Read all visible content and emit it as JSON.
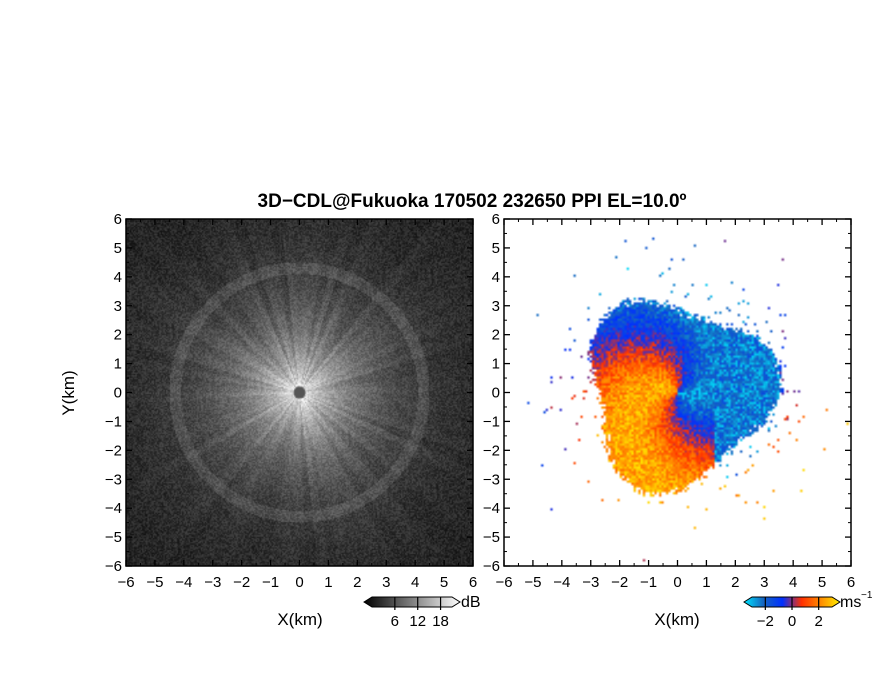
{
  "title": "3D−CDL@Fukuoka 170502 232650 PPI EL=10.0º",
  "chart_data": [
    {
      "type": "heatmap",
      "panel": "left",
      "xlabel": "X(km)",
      "ylabel": "Y(km)",
      "xlim": [
        -6,
        6
      ],
      "ylim": [
        -6,
        6
      ],
      "xticks": [
        "−6",
        "−5",
        "−4",
        "−3",
        "−2",
        "−1",
        "0",
        "1",
        "2",
        "3",
        "4",
        "5",
        "6"
      ],
      "yticks": [
        "6",
        "5",
        "4",
        "3",
        "2",
        "1",
        "0",
        "−1",
        "−2",
        "−3",
        "−4",
        "−5",
        "−6"
      ],
      "colorbar": {
        "unit": "dB",
        "ticks": [
          "6",
          "12",
          "18"
        ],
        "tick_values": [
          6,
          12,
          18
        ],
        "range": [
          0,
          21
        ]
      },
      "colormap": [
        "#000000",
        "#555555",
        "#aaaaaa",
        "#ffffff"
      ],
      "center_marker_color": "#555555"
    },
    {
      "type": "heatmap",
      "panel": "right",
      "xlabel": "X(km)",
      "ylabel": "",
      "xlim": [
        -6,
        6
      ],
      "ylim": [
        -6,
        6
      ],
      "xticks": [
        "−6",
        "−5",
        "−4",
        "−3",
        "−2",
        "−1",
        "0",
        "1",
        "2",
        "3",
        "4",
        "5",
        "6"
      ],
      "yticks": [
        "6",
        "5",
        "4",
        "3",
        "2",
        "1",
        "0",
        "−1",
        "−2",
        "−3",
        "−4",
        "−5",
        "−6"
      ],
      "colorbar": {
        "unit_main": "ms",
        "unit_sup": "−1",
        "ticks": [
          "−2",
          "0",
          "2"
        ],
        "tick_values": [
          -2,
          0,
          2
        ],
        "range": [
          -3,
          3
        ]
      },
      "colormap": [
        "#00e5ff",
        "#1565c0",
        "#0030ff",
        "#ff3000",
        "#ff8c00",
        "#ffee00"
      ]
    }
  ]
}
